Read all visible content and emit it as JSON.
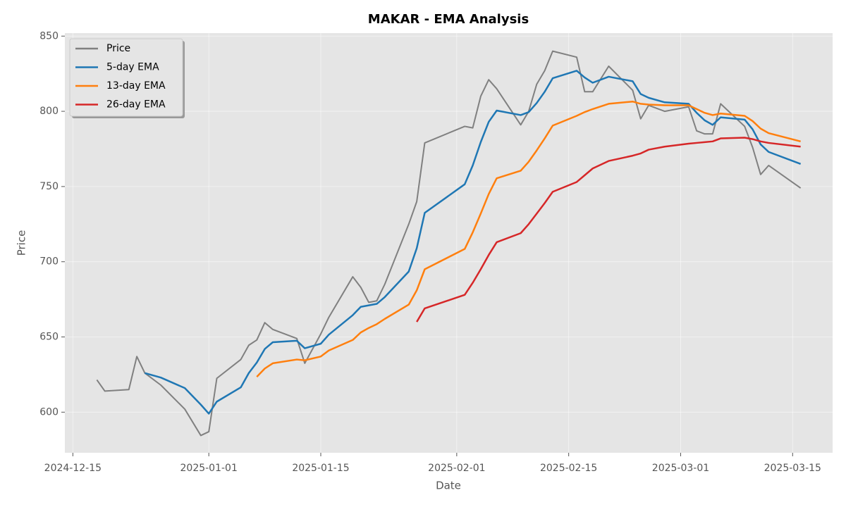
{
  "chart_data": {
    "type": "line",
    "title": "MAKAR - EMA Analysis",
    "xlabel": "Date",
    "ylabel": "Price",
    "x": [
      "2024-12-18",
      "2024-12-19",
      "2024-12-22",
      "2024-12-23",
      "2024-12-24",
      "2024-12-26",
      "2024-12-29",
      "2024-12-31",
      "2025-01-01",
      "2025-01-02",
      "2025-01-05",
      "2025-01-06",
      "2025-01-07",
      "2025-01-08",
      "2025-01-09",
      "2025-01-12",
      "2025-01-13",
      "2025-01-15",
      "2025-01-16",
      "2025-01-19",
      "2025-01-20",
      "2025-01-21",
      "2025-01-22",
      "2025-01-23",
      "2025-01-26",
      "2025-01-27",
      "2025-01-28",
      "2025-02-02",
      "2025-02-03",
      "2025-02-04",
      "2025-02-05",
      "2025-02-06",
      "2025-02-09",
      "2025-02-10",
      "2025-02-11",
      "2025-02-12",
      "2025-02-13",
      "2025-02-16",
      "2025-02-17",
      "2025-02-18",
      "2025-02-20",
      "2025-02-23",
      "2025-02-24",
      "2025-02-25",
      "2025-02-27",
      "2025-03-02",
      "2025-03-03",
      "2025-03-04",
      "2025-03-05",
      "2025-03-06",
      "2025-03-09",
      "2025-03-10",
      "2025-03-11",
      "2025-03-12",
      "2025-03-16"
    ],
    "series": [
      {
        "name": "Price",
        "color": "#808080",
        "values": [
          621.5,
          614,
          615,
          637,
          626,
          618,
          602,
          584.5,
          587,
          622.5,
          635,
          644.5,
          648,
          659.5,
          655,
          649,
          632.5,
          652,
          663,
          690,
          683,
          673,
          674,
          685,
          725,
          740,
          779,
          790,
          789,
          810,
          821,
          815,
          791,
          800,
          818,
          827,
          840,
          836,
          813,
          813,
          830,
          814,
          795,
          804,
          800,
          803,
          787,
          785,
          785,
          805,
          790,
          776,
          758,
          764,
          749
        ]
      },
      {
        "name": "5-day EMA",
        "color": "#1f77b4",
        "values": [
          null,
          null,
          null,
          null,
          626,
          623,
          616,
          605,
          599,
          607,
          616.5,
          626,
          633,
          642,
          646.5,
          647.5,
          642.5,
          645.5,
          651.5,
          664.5,
          670,
          671,
          672,
          676.5,
          693.5,
          709,
          732.5,
          751.5,
          764,
          779.5,
          793,
          800.5,
          797.5,
          799.5,
          805.5,
          813,
          822,
          827,
          822.5,
          819,
          823,
          820,
          811.5,
          809,
          806,
          805,
          799,
          794,
          791,
          796,
          794.5,
          788,
          778,
          773,
          765
        ]
      },
      {
        "name": "13-day EMA",
        "color": "#ff7f0e",
        "values": [
          null,
          null,
          null,
          null,
          null,
          null,
          null,
          null,
          null,
          null,
          null,
          null,
          623.5,
          629,
          632.5,
          635,
          634.5,
          637,
          641,
          648,
          653,
          656,
          658.5,
          662,
          671.5,
          681,
          695,
          708.5,
          719.5,
          732,
          745,
          755.5,
          760.5,
          766.5,
          774,
          782,
          790.5,
          797,
          799.5,
          801.5,
          805,
          806.5,
          805,
          804.5,
          804,
          804,
          801.5,
          799,
          797.5,
          798.5,
          797,
          793.5,
          788.5,
          785.5,
          780
        ]
      },
      {
        "name": "26-day EMA",
        "color": "#d62728",
        "values": [
          null,
          null,
          null,
          null,
          null,
          null,
          null,
          null,
          null,
          null,
          null,
          null,
          null,
          null,
          null,
          null,
          null,
          null,
          null,
          null,
          null,
          null,
          null,
          null,
          null,
          660,
          669,
          678,
          686,
          695,
          704.5,
          713,
          719,
          725,
          732,
          739,
          746.5,
          753,
          757.5,
          762,
          767,
          770.5,
          772,
          774.5,
          776.5,
          778.5,
          779,
          779.5,
          780,
          782,
          782.5,
          781.5,
          780,
          779,
          776.5
        ]
      }
    ],
    "xlim": [
      "2024-12-14",
      "2025-03-20"
    ],
    "xticks": [
      "2024-12-15",
      "2025-01-01",
      "2025-01-15",
      "2025-02-01",
      "2025-02-15",
      "2025-03-01",
      "2025-03-15"
    ],
    "ylim": [
      573,
      852
    ],
    "yticks": [
      600,
      650,
      700,
      750,
      800,
      850
    ],
    "grid": true,
    "legend": "upper left"
  }
}
